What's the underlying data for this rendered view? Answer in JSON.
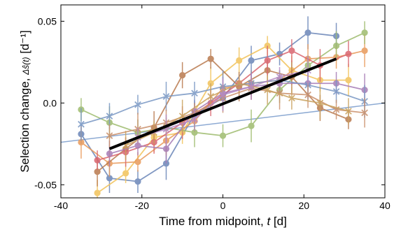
{
  "chart_data": {
    "type": "line",
    "xlabel_prefix": "Time from midpoint, ",
    "xlabel_var": "t",
    "xlabel_suffix": " [d]",
    "ylabel_prefix": "Selection change, ",
    "ylabel_var": "Δŝ(t)",
    "ylabel_unit": "[d⁻¹]",
    "xlim": [
      -40,
      40
    ],
    "ylim": [
      -0.058,
      0.06
    ],
    "xticks": [
      -40,
      -20,
      0,
      20,
      40
    ],
    "xtick_labels": [
      "-40",
      "-20",
      "0",
      "20",
      "40"
    ],
    "yticks": [
      -0.05,
      0,
      0.05
    ],
    "ytick_labels": [
      "-0.05",
      "0.0",
      "0.05"
    ],
    "grid": false,
    "legend": "none",
    "background_line": {
      "x": [
        -40,
        40
      ],
      "y": [
        -0.024,
        0.0
      ]
    },
    "fit": {
      "x": [
        -28,
        28
      ],
      "y": [
        -0.028,
        0.027
      ]
    },
    "series": [
      {
        "color": "#6a86b8",
        "marker": "o",
        "x": [
          -35,
          -28,
          -21,
          -14,
          -7,
          0,
          7,
          14,
          21,
          28
        ],
        "y": [
          -0.019,
          -0.046,
          -0.048,
          -0.037,
          -0.007,
          0.003,
          0.026,
          0.03,
          0.043,
          0.041
        ]
      },
      {
        "color": "#f2c35a",
        "marker": "o",
        "x": [
          -31,
          -24,
          -17,
          -10,
          -3,
          4,
          11,
          17,
          24,
          31
        ],
        "y": [
          -0.055,
          -0.043,
          -0.021,
          -0.018,
          0.012,
          0.026,
          0.035,
          0.02,
          0.014,
          0.014
        ]
      },
      {
        "color": "#e89a5a",
        "marker": "o",
        "x": [
          -35,
          -28,
          -21,
          -14,
          -7,
          0,
          7,
          14,
          21,
          28,
          35
        ],
        "y": [
          -0.024,
          -0.037,
          -0.036,
          -0.023,
          -0.011,
          0.009,
          0.012,
          0.014,
          0.027,
          0.028,
          0.032
        ]
      },
      {
        "color": "#9ebc6e",
        "marker": "o",
        "x": [
          -35,
          -28,
          -21,
          -14,
          -7,
          0,
          7,
          14,
          21,
          28,
          35
        ],
        "y": [
          -0.004,
          -0.012,
          -0.018,
          -0.015,
          -0.018,
          -0.02,
          -0.014,
          0.008,
          0.023,
          0.035,
          0.043
        ]
      },
      {
        "color": "#b97a4e",
        "marker": "o",
        "x": [
          -31,
          -24,
          -17,
          -10,
          -3,
          4,
          11,
          17,
          24,
          31
        ],
        "y": [
          -0.042,
          -0.028,
          -0.015,
          0.017,
          0.027,
          0.01,
          0.02,
          0.016,
          -0.003,
          -0.01
        ]
      },
      {
        "color": "#d9646e",
        "marker": "o",
        "x": [
          -31,
          -24,
          -17,
          -10,
          -3,
          4,
          11,
          17,
          24,
          31
        ],
        "y": [
          -0.035,
          -0.03,
          -0.024,
          -0.012,
          0.0,
          0.012,
          0.026,
          0.032,
          0.023,
          0.03
        ]
      },
      {
        "color": "#a67cb6",
        "marker": "o",
        "x": [
          -28,
          -21,
          -14,
          -7,
          0,
          7,
          14,
          21,
          28,
          35
        ],
        "y": [
          -0.031,
          -0.026,
          -0.028,
          -0.005,
          0.006,
          0.01,
          0.012,
          0.012,
          0.012,
          0.008
        ]
      },
      {
        "color": "#7897c4",
        "marker": "x",
        "x": [
          -35,
          -28,
          -21,
          -14,
          -7,
          0,
          7,
          14,
          21,
          28,
          35
        ],
        "y": [
          -0.013,
          -0.008,
          -0.001,
          0.004,
          0.006,
          0.01,
          0.012,
          0.014,
          0.011,
          0.007,
          0.001
        ]
      },
      {
        "color": "#c98f6a",
        "marker": "x",
        "x": [
          -28,
          -21,
          -14,
          -7,
          0,
          7,
          14,
          21,
          28,
          35
        ],
        "y": [
          -0.02,
          -0.016,
          -0.012,
          -0.006,
          0.003,
          0.009,
          0.006,
          0.005,
          -0.004,
          -0.006
        ]
      },
      {
        "color": "#c9a25e",
        "marker": "x",
        "x": [
          -24,
          -17,
          -10,
          -3,
          4,
          11,
          17,
          24,
          31
        ],
        "y": [
          -0.026,
          -0.018,
          -0.008,
          0.004,
          0.012,
          0.008,
          0.003,
          0.0,
          -0.005
        ]
      },
      {
        "color": "#b58ac4",
        "marker": "x",
        "x": [
          -21,
          -14,
          -7,
          0,
          7,
          14,
          21
        ],
        "y": [
          -0.021,
          -0.016,
          -0.01,
          0.005,
          0.01,
          0.016,
          0.02
        ]
      }
    ]
  }
}
